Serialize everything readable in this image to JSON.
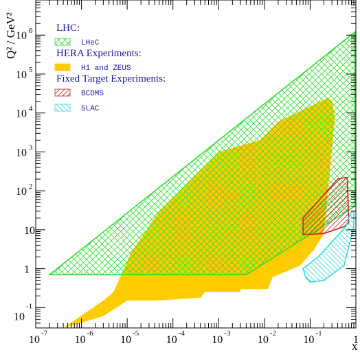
{
  "chart_data": {
    "type": "area",
    "title": "",
    "xlabel": "x",
    "ylabel": "Q² / GeV²",
    "x_scale": "log",
    "y_scale": "log",
    "xlim": [
      1e-07,
      1
    ],
    "ylim": [
      0.03,
      8000000
    ],
    "x_ticks": [
      {
        "value": 1e-07,
        "base": "10",
        "exp": "-7"
      },
      {
        "value": 1e-06,
        "base": "10",
        "exp": "-6"
      },
      {
        "value": 1e-05,
        "base": "10",
        "exp": "-5"
      },
      {
        "value": 0.0001,
        "base": "10",
        "exp": "-4"
      },
      {
        "value": 0.001,
        "base": "10",
        "exp": "-3"
      },
      {
        "value": 0.01,
        "base": "10",
        "exp": "-2"
      },
      {
        "value": 0.1,
        "base": "10",
        "exp": "-1"
      },
      {
        "value": 1,
        "base": "1",
        "exp": ""
      }
    ],
    "y_ticks": [
      {
        "value": 0.1,
        "base": "10",
        "exp": "-1"
      },
      {
        "value": 1,
        "base": "1",
        "exp": ""
      },
      {
        "value": 10,
        "base": "10",
        "exp": ""
      },
      {
        "value": 100,
        "base": "10",
        "exp": "2"
      },
      {
        "value": 1000,
        "base": "10",
        "exp": "3"
      },
      {
        "value": 10000,
        "base": "10",
        "exp": "4"
      },
      {
        "value": 100000,
        "base": "10",
        "exp": "5"
      },
      {
        "value": 1000000,
        "base": "10",
        "exp": "6"
      }
    ],
    "legend": {
      "position": "top-left",
      "groups": [
        {
          "header": "LHC:",
          "items": [
            {
              "label": "LHeC",
              "series": "LHeC"
            }
          ]
        },
        {
          "header": "HERA Experiments:",
          "items": [
            {
              "label": "H1 and ZEUS",
              "series": "H1 and ZEUS"
            }
          ]
        },
        {
          "header": "Fixed Target Experiments:",
          "items": [
            {
              "label": "BCDMS",
              "series": "BCDMS"
            },
            {
              "label": "SLAC",
              "series": "SLAC"
            }
          ]
        }
      ]
    },
    "series": [
      {
        "name": "H1 and ZEUS",
        "style": "filled",
        "color": "#ffcc00",
        "region": [
          [
            4e-07,
            0.03
          ],
          [
            3e-06,
            0.06
          ],
          [
            1e-05,
            0.15
          ],
          [
            4e-05,
            0.15
          ],
          [
            0.0004,
            0.18
          ],
          [
            0.0005,
            0.25
          ],
          [
            0.003,
            0.25
          ],
          [
            0.003,
            0.3
          ],
          [
            0.012,
            0.3
          ],
          [
            0.015,
            0.6
          ],
          [
            0.06,
            1.2
          ],
          [
            0.12,
            3
          ],
          [
            0.2,
            8
          ],
          [
            0.35,
            8000
          ],
          [
            0.3,
            20000
          ],
          [
            0.25,
            25000
          ],
          [
            0.05,
            10000
          ],
          [
            0.02,
            6000
          ],
          [
            0.008,
            2000
          ],
          [
            0.001,
            1000
          ],
          [
            0.00025,
            200
          ],
          [
            5e-05,
            30
          ],
          [
            1.2e-05,
            2.5
          ],
          [
            6e-06,
            0.4
          ],
          [
            5e-06,
            0.25
          ],
          [
            3e-06,
            0.15
          ]
        ]
      },
      {
        "name": "LHeC",
        "style": "hatched",
        "color": "#33dd33",
        "region": [
          [
            2e-07,
            0.7
          ],
          [
            0.004,
            0.7
          ],
          [
            0.95,
            40
          ],
          [
            0.95,
            1200000
          ]
        ]
      },
      {
        "name": "BCDMS",
        "style": "hatched",
        "color": "#cc2222",
        "region": [
          [
            0.07,
            20
          ],
          [
            0.4,
            200
          ],
          [
            0.6,
            220
          ],
          [
            0.65,
            220
          ],
          [
            0.7,
            15
          ],
          [
            0.55,
            12
          ],
          [
            0.2,
            8
          ],
          [
            0.07,
            7.5
          ]
        ]
      },
      {
        "name": "SLAC",
        "style": "hatched",
        "color": "#33dddd",
        "region": [
          [
            0.08,
            0.6
          ],
          [
            0.07,
            1
          ],
          [
            0.15,
            2
          ],
          [
            0.6,
            12
          ],
          [
            0.8,
            30
          ],
          [
            0.9,
            30
          ],
          [
            0.9,
            12
          ],
          [
            0.55,
            1.2
          ],
          [
            0.2,
            0.5
          ],
          [
            0.1,
            0.45
          ]
        ]
      }
    ]
  }
}
